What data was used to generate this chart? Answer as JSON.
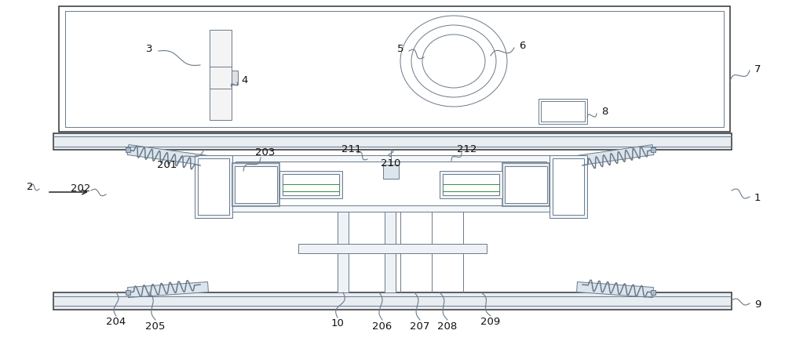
{
  "bg_color": "#ffffff",
  "lc": "#6a7a8a",
  "lc_dark": "#333333",
  "lc_green": "#4a8a4a",
  "lw_thin": 0.7,
  "lw_med": 1.1,
  "lw_thick": 1.6,
  "fs": 9.5,
  "fc_label": "#111111",
  "fc_plate": "#d8e0e8",
  "fc_white": "#ffffff",
  "fc_light": "#eef2f6"
}
